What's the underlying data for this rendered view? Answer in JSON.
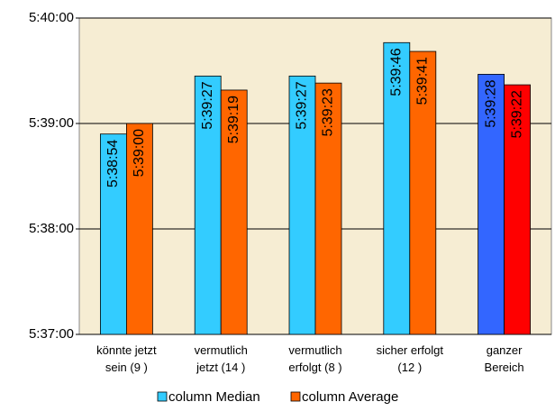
{
  "chart_data": {
    "type": "bar",
    "categories": [
      "könnte jetzt\nsein (9 )",
      "vermutlich\njetzt (14 )",
      "vermutlich\nerfolgt (8 )",
      "sicher erfolgt\n(12 )",
      "ganzer\nBereich"
    ],
    "series": [
      {
        "name": "column Median",
        "color": "#33ccff",
        "colors": [
          "#33ccff",
          "#33ccff",
          "#33ccff",
          "#33ccff",
          "#3366ff"
        ],
        "values": [
          20334,
          20367,
          20367,
          20386,
          20368
        ],
        "value_labels": [
          "5:38:54",
          "5:39:27",
          "5:39:27",
          "5:39:46",
          "5:39:28"
        ]
      },
      {
        "name": "column Average",
        "color": "#ff6600",
        "colors": [
          "#ff6600",
          "#ff6600",
          "#ff6600",
          "#ff6600",
          "#ff0000"
        ],
        "values": [
          20340,
          20359,
          20363,
          20381,
          20362
        ],
        "value_labels": [
          "5:39:00",
          "5:39:19",
          "5:39:23",
          "5:39:41",
          "5:39:22"
        ]
      }
    ],
    "ylim": [
      20220,
      20400
    ],
    "yticks": [
      {
        "value": 20220,
        "label": "5:37:00"
      },
      {
        "value": 20280,
        "label": "5:38:00"
      },
      {
        "value": 20340,
        "label": "5:39:00"
      },
      {
        "value": 20400,
        "label": "5:40:00"
      }
    ],
    "grid": true,
    "legend": "bottom"
  }
}
